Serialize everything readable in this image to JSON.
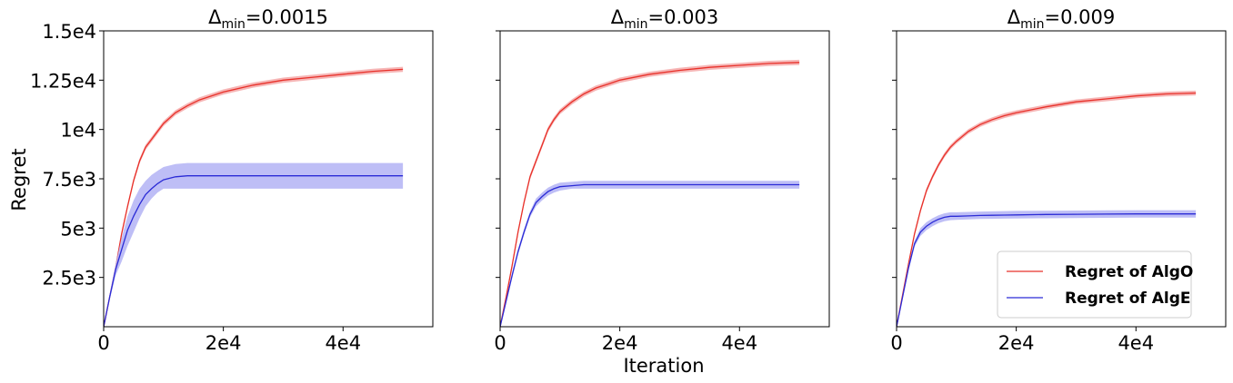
{
  "figure": {
    "ylabel": "Regret",
    "xlabel": "Iteration",
    "colors": {
      "algo": "#e8312a",
      "algo_band": "#f4a9a9",
      "alge": "#2b2bd6",
      "alge_band": "#b3b3f5"
    }
  },
  "legend": {
    "placement": "bottom-right of third panel",
    "entries": [
      "Regret of AlgO",
      "Regret of AlgE"
    ]
  },
  "chart_data": [
    {
      "type": "line",
      "title_symbol": "Δ",
      "title_sub": "min",
      "title_value": "=0.0015",
      "xlim": [
        0,
        55000
      ],
      "ylim": [
        0,
        15000
      ],
      "xticks": [
        0,
        20000,
        40000
      ],
      "xtick_labels": [
        "0",
        "2e4",
        "4e4"
      ],
      "yticks": [
        2500,
        5000,
        7500,
        10000,
        12500,
        15000
      ],
      "ytick_labels": [
        "2.5e3",
        "5e3",
        "7.5e3",
        "1e4",
        "1.25e4",
        "1.5e4"
      ],
      "x": [
        0,
        1000,
        2000,
        3000,
        4000,
        5000,
        6000,
        7000,
        8000,
        9000,
        10000,
        12000,
        14000,
        16000,
        18000,
        20000,
        25000,
        30000,
        35000,
        40000,
        45000,
        50000
      ],
      "series": [
        {
          "name": "Regret of AlgO",
          "values": [
            0,
            1500,
            3000,
            4700,
            6100,
            7400,
            8400,
            9100,
            9500,
            9900,
            10300,
            10850,
            11200,
            11500,
            11700,
            11900,
            12250,
            12500,
            12650,
            12800,
            12950,
            13050
          ],
          "band": 130
        },
        {
          "name": "Regret of AlgE",
          "values": [
            0,
            1500,
            2900,
            3900,
            4900,
            5600,
            6200,
            6700,
            7000,
            7250,
            7450,
            7600,
            7650,
            7650,
            7650,
            7650,
            7650,
            7650,
            7650,
            7650,
            7650,
            7650
          ],
          "band_lower": [
            0,
            1350,
            2600,
            3300,
            4100,
            4800,
            5500,
            6100,
            6500,
            6800,
            7000,
            7000,
            7000,
            7000,
            7000,
            7000,
            7000,
            7000,
            7000,
            7000,
            7000,
            7000
          ],
          "band_upper": [
            0,
            1650,
            3200,
            4500,
            5600,
            6400,
            7000,
            7400,
            7700,
            7900,
            8100,
            8250,
            8300,
            8300,
            8300,
            8300,
            8300,
            8300,
            8300,
            8300,
            8300,
            8300
          ]
        }
      ]
    },
    {
      "type": "line",
      "title_symbol": "Δ",
      "title_sub": "min",
      "title_value": "=0.003",
      "xlim": [
        0,
        55000
      ],
      "ylim": [
        0,
        15000
      ],
      "xticks": [
        0,
        20000,
        40000
      ],
      "xtick_labels": [
        "0",
        "2e4",
        "4e4"
      ],
      "yticks": [
        2500,
        5000,
        7500,
        10000,
        12500,
        15000
      ],
      "ytick_labels": [],
      "x": [
        0,
        1000,
        2000,
        3000,
        4000,
        5000,
        6000,
        7000,
        8000,
        9000,
        10000,
        12000,
        14000,
        16000,
        18000,
        20000,
        25000,
        30000,
        35000,
        40000,
        45000,
        50000
      ],
      "series": [
        {
          "name": "Regret of AlgO",
          "values": [
            0,
            1500,
            3100,
            4800,
            6300,
            7600,
            8400,
            9200,
            10000,
            10500,
            10900,
            11400,
            11800,
            12100,
            12300,
            12500,
            12800,
            13000,
            13150,
            13250,
            13350,
            13400
          ],
          "band": 130
        },
        {
          "name": "Regret of AlgE",
          "values": [
            0,
            1300,
            2600,
            3800,
            4800,
            5700,
            6300,
            6600,
            6850,
            7000,
            7100,
            7150,
            7200,
            7200,
            7200,
            7200,
            7200,
            7200,
            7200,
            7200,
            7200,
            7200
          ],
          "band_lower": [
            0,
            1200,
            2450,
            3650,
            4650,
            5550,
            6100,
            6400,
            6650,
            6800,
            6900,
            7000,
            7000,
            7000,
            7000,
            7000,
            7000,
            7000,
            7000,
            7000,
            7000,
            7000
          ],
          "band_upper": [
            0,
            1400,
            2750,
            3950,
            4950,
            5850,
            6500,
            6800,
            7050,
            7200,
            7300,
            7350,
            7400,
            7400,
            7400,
            7400,
            7400,
            7400,
            7400,
            7400,
            7400,
            7400
          ]
        }
      ]
    },
    {
      "type": "line",
      "title_symbol": "Δ",
      "title_sub": "min",
      "title_value": "=0.009",
      "xlim": [
        0,
        55000
      ],
      "ylim": [
        0,
        15000
      ],
      "xticks": [
        0,
        20000,
        40000
      ],
      "xtick_labels": [
        "0",
        "2e4",
        "4e4"
      ],
      "yticks": [
        2500,
        5000,
        7500,
        10000,
        12500,
        15000
      ],
      "ytick_labels": [],
      "x": [
        0,
        1000,
        2000,
        3000,
        4000,
        5000,
        6000,
        7000,
        8000,
        9000,
        10000,
        12000,
        14000,
        16000,
        18000,
        20000,
        25000,
        30000,
        35000,
        40000,
        45000,
        50000
      ],
      "series": [
        {
          "name": "Regret of AlgO",
          "values": [
            0,
            1600,
            3200,
            4700,
            5900,
            6900,
            7600,
            8200,
            8700,
            9100,
            9400,
            9900,
            10250,
            10500,
            10700,
            10850,
            11150,
            11400,
            11550,
            11700,
            11800,
            11850
          ],
          "band": 120
        },
        {
          "name": "Regret of AlgE",
          "values": [
            0,
            1500,
            3000,
            4200,
            4800,
            5100,
            5300,
            5450,
            5550,
            5600,
            5600,
            5620,
            5640,
            5650,
            5660,
            5670,
            5690,
            5700,
            5710,
            5720,
            5720,
            5720
          ],
          "band_lower": [
            0,
            1400,
            2850,
            4050,
            4600,
            4900,
            5100,
            5250,
            5350,
            5400,
            5420,
            5440,
            5460,
            5470,
            5480,
            5490,
            5500,
            5510,
            5520,
            5530,
            5530,
            5530
          ],
          "band_upper": [
            0,
            1600,
            3150,
            4350,
            5000,
            5300,
            5500,
            5650,
            5750,
            5800,
            5800,
            5820,
            5840,
            5850,
            5860,
            5870,
            5880,
            5890,
            5900,
            5910,
            5910,
            5910
          ]
        }
      ]
    }
  ]
}
